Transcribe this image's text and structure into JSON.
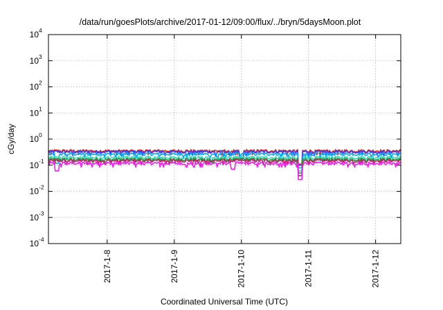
{
  "chart_data": {
    "type": "line",
    "title": "/data/run/goesPlots/archive/2017-01-12/09:00/flux/../bryn/5daysMoon.plot",
    "xlabel": "Coordinated Universal Time (UTC)",
    "ylabel": "cGy/day",
    "yscale": "log",
    "ylim": [
      0.0001,
      10000
    ],
    "xlim": [
      "2017-01-07T03:00",
      "2017-01-12T09:00"
    ],
    "y_ticks": [
      {
        "base": "10",
        "exp": "-4",
        "value": 0.0001
      },
      {
        "base": "10",
        "exp": "-3",
        "value": 0.001
      },
      {
        "base": "10",
        "exp": "-2",
        "value": 0.01
      },
      {
        "base": "10",
        "exp": "-1",
        "value": 0.1
      },
      {
        "base": "10",
        "exp": "0",
        "value": 1
      },
      {
        "base": "10",
        "exp": "1",
        "value": 10
      },
      {
        "base": "10",
        "exp": "2",
        "value": 100
      },
      {
        "base": "10",
        "exp": "3",
        "value": 1000
      },
      {
        "base": "10",
        "exp": "4",
        "value": 10000
      }
    ],
    "x_ticks": [
      {
        "label": "2017-1-8",
        "value": "2017-01-08T00:00"
      },
      {
        "label": "2017-1-9",
        "value": "2017-01-09T00:00"
      },
      {
        "label": "2017-1-10",
        "value": "2017-01-10T00:00"
      },
      {
        "label": "2017-1-11",
        "value": "2017-01-11T00:00"
      },
      {
        "label": "2017-1-12",
        "value": "2017-01-12T00:00"
      }
    ],
    "grid": true,
    "legend": "none",
    "series": [
      {
        "color": "#e3222a",
        "typical": 0.36,
        "dips": [
          {
            "x": "2017-01-10T21:00",
            "y": 0.11
          },
          {
            "x": "2017-01-10T00:00",
            "y": 0.2
          }
        ]
      },
      {
        "color": "#3d3df5",
        "typical": 0.33,
        "dips": [
          {
            "x": "2017-01-10T21:00",
            "y": 0.1
          },
          {
            "x": "2017-01-10T00:00",
            "y": 0.18
          }
        ]
      },
      {
        "color": "#00a9f0",
        "typical": 0.27,
        "dips": [
          {
            "x": "2017-01-10T21:00",
            "y": 0.08
          },
          {
            "x": "2017-01-07T06:00",
            "y": 0.12
          }
        ]
      },
      {
        "color": "#3ddcc0",
        "typical": 0.2,
        "dips": [
          {
            "x": "2017-01-10T21:00",
            "y": 0.06
          }
        ]
      },
      {
        "color": "#2a9d32",
        "typical": 0.17,
        "dips": [
          {
            "x": "2017-01-10T21:00",
            "y": 0.05
          }
        ]
      },
      {
        "color": "#c21f73",
        "typical": 0.15,
        "dips": [
          {
            "x": "2017-01-10T21:00",
            "y": 0.04
          }
        ]
      },
      {
        "color": "#f01ef0",
        "typical": 0.12,
        "dips": [
          {
            "x": "2017-01-10T21:00",
            "y": 0.028
          },
          {
            "x": "2017-01-07T06:00",
            "y": 0.06
          },
          {
            "x": "2017-01-09T21:00",
            "y": 0.07
          }
        ]
      }
    ]
  }
}
